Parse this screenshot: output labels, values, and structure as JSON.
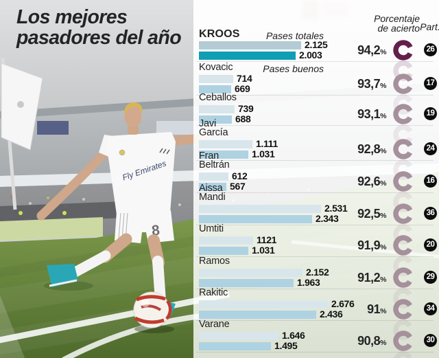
{
  "title": {
    "line1": "Los mejores",
    "line2": "pasadores del año"
  },
  "header": {
    "legend_totales": "Pases totales",
    "legend_buenos": "Pases buenos",
    "percent_line1": "Porcentaje",
    "percent_line2": "de acierto",
    "part": "Part.",
    "percent_sign": "%"
  },
  "photo": {
    "jersey_sponsor": "Fly Emirates",
    "shorts_number": "8"
  },
  "colors": {
    "bar_totales_highlight": "#b4cbd4",
    "bar_buenos_highlight": "#0f9eb4",
    "bar_totales": "#d8e6ec",
    "bar_buenos": "#aed2e2",
    "ring_highlight": "#63204c",
    "ring": "#a5909b",
    "badge_bg": "#0d0d0d",
    "badge_text": "#ffffff"
  },
  "players": [
    {
      "name_lines": [
        "KROOS"
      ],
      "totales": 2125,
      "totales_label": "2.125",
      "buenos": 2003,
      "buenos_label": "2.003",
      "percent": 94.2,
      "percent_label": "94,2",
      "part": "26",
      "highlight": true
    },
    {
      "name_lines": [
        "Kovacic"
      ],
      "totales": 714,
      "totales_label": "714",
      "buenos": 669,
      "buenos_label": "669",
      "percent": 93.7,
      "percent_label": "93,7",
      "part": "17",
      "highlight": false
    },
    {
      "name_lines": [
        "Ceballos"
      ],
      "totales": 739,
      "totales_label": "739",
      "buenos": 688,
      "buenos_label": "688",
      "percent": 93.1,
      "percent_label": "93,1",
      "part": "19",
      "highlight": false
    },
    {
      "name_lines": [
        "Javi",
        "García"
      ],
      "totales": 1111,
      "totales_label": "1.111",
      "buenos": 1031,
      "buenos_label": "1.031",
      "percent": 92.8,
      "percent_label": "92,8",
      "part": "24",
      "highlight": false
    },
    {
      "name_lines": [
        "Fran",
        "Beltrán"
      ],
      "totales": 612,
      "totales_label": "612",
      "buenos": 567,
      "buenos_label": "567",
      "percent": 92.6,
      "percent_label": "92,6",
      "part": "16",
      "highlight": false
    },
    {
      "name_lines": [
        "Aissa",
        "Mandi"
      ],
      "totales": 2531,
      "totales_label": "2.531",
      "buenos": 2343,
      "buenos_label": "2.343",
      "percent": 92.5,
      "percent_label": "92,5",
      "part": "36",
      "highlight": false
    },
    {
      "name_lines": [
        "Umtiti"
      ],
      "totales": 1121,
      "totales_label": "1121",
      "buenos": 1031,
      "buenos_label": "1.031",
      "percent": 91.9,
      "percent_label": "91,9",
      "part": "20",
      "highlight": false
    },
    {
      "name_lines": [
        "Ramos"
      ],
      "totales": 2152,
      "totales_label": "2.152",
      "buenos": 1963,
      "buenos_label": "1.963",
      "percent": 91.2,
      "percent_label": "91,2",
      "part": "29",
      "highlight": false
    },
    {
      "name_lines": [
        "Rakitic"
      ],
      "totales": 2676,
      "totales_label": "2.676",
      "buenos": 2436,
      "buenos_label": "2.436",
      "percent": 91.0,
      "percent_label": "91",
      "part": "34",
      "highlight": false
    },
    {
      "name_lines": [
        "Varane"
      ],
      "totales": 1646,
      "totales_label": "1.646",
      "buenos": 1495,
      "buenos_label": "1.495",
      "percent": 90.8,
      "percent_label": "90,8",
      "part": "30",
      "highlight": false
    }
  ],
  "chart_data": {
    "type": "bar",
    "orientation": "horizontal",
    "title": "Los mejores pasadores del año",
    "categories": [
      "Kroos",
      "Kovacic",
      "Ceballos",
      "Javi García",
      "Fran Beltrán",
      "Aissa Mandi",
      "Umtiti",
      "Ramos",
      "Rakitic",
      "Varane"
    ],
    "series": [
      {
        "name": "Pases totales",
        "values": [
          2125,
          714,
          739,
          1111,
          612,
          2531,
          1121,
          2152,
          2676,
          1646
        ]
      },
      {
        "name": "Pases buenos",
        "values": [
          2003,
          669,
          688,
          1031,
          567,
          2343,
          1031,
          1963,
          2436,
          1495
        ]
      }
    ],
    "percent_acierto": [
      94.2,
      93.7,
      93.1,
      92.8,
      92.6,
      92.5,
      91.9,
      91.2,
      91.0,
      90.8
    ],
    "partidos": [
      26,
      17,
      19,
      24,
      16,
      36,
      20,
      29,
      34,
      30
    ],
    "xlim": [
      0,
      2700
    ],
    "grid": false,
    "legend_position": "inline-first-row"
  }
}
